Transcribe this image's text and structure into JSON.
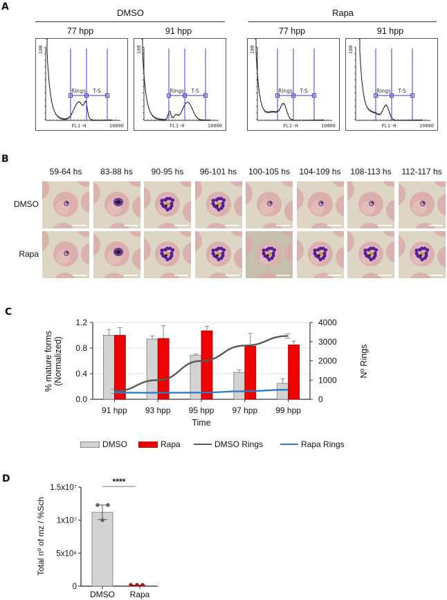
{
  "panel_a": {
    "letter": "A",
    "groups": [
      {
        "label": "DMSO",
        "plots": [
          {
            "title": "77 hpp",
            "profile": "dmso77"
          },
          {
            "title": "91 hpp",
            "profile": "dmso91"
          }
        ]
      },
      {
        "label": "Rapa",
        "plots": [
          {
            "title": "77 hpp",
            "profile": "rapa77"
          },
          {
            "title": "91 hpp",
            "profile": "rapa91"
          }
        ]
      }
    ],
    "y_tick_label": "100",
    "x_axis_label": "FL1-H",
    "x_max_label": "10000",
    "gate_labels": [
      "Rings",
      "T-S"
    ],
    "gate_color": "#3a3adf"
  },
  "panel_b": {
    "letter": "B",
    "time_labels": [
      "59-64 hs",
      "83-88 hs",
      "90-95 hs",
      "96-101 hs",
      "100-105 hs",
      "104-109 hs",
      "108-113 hs",
      "112-117 hs"
    ],
    "row_labels": [
      "DMSO",
      "Rapa"
    ],
    "stages": {
      "DMSO": [
        "ring",
        "trophozoite",
        "schizont",
        "schizont",
        "ring",
        "ring",
        "ring",
        "ring"
      ],
      "Rapa": [
        "ring",
        "trophozoite",
        "schizont",
        "schizont",
        "schizont",
        "schizont",
        "schizont",
        "schizont"
      ]
    }
  },
  "panel_c": {
    "letter": "C",
    "ylabel_line1": "% mature forms",
    "ylabel_line2": "(Normalized)",
    "y2label": "Nº Rings",
    "xlabel": "Time",
    "y_ticks": [
      "0.0",
      "0.4",
      "0.8",
      "1.2"
    ],
    "y2_ticks": [
      "0",
      "1000",
      "2000",
      "3000",
      "4000"
    ],
    "legend": [
      {
        "label": "DMSO",
        "kind": "bar",
        "color": "#d3d3d3"
      },
      {
        "label": "Rapa",
        "kind": "bar",
        "color": "#ee0000"
      },
      {
        "label": "DMSO Rings",
        "kind": "line",
        "color": "#595959"
      },
      {
        "label": "Rapa Rings",
        "kind": "line",
        "color": "#2e7cc4"
      }
    ]
  },
  "panel_d": {
    "letter": "D",
    "ylabel": "Total nº of mz / %Sch",
    "y_ticks": [
      "0",
      "5x10⁶",
      "1x10⁷",
      "1.5x10⁷"
    ],
    "categories": [
      "DMSO",
      "Rapa"
    ],
    "significance": "****"
  },
  "chart_data": [
    {
      "type": "bar",
      "title": "Panel C: mature forms and ring counts over time",
      "categories": [
        "91 hpp",
        "93 hpp",
        "95 hpp",
        "97 hpp",
        "99 hpp"
      ],
      "xlabel": "Time",
      "ylabel": "% mature forms (Normalized)",
      "y2label": "Nº Rings",
      "ylim": [
        0,
        1.2
      ],
      "y2lim": [
        0,
        4000
      ],
      "grid": true,
      "legend_position": "bottom",
      "series": [
        {
          "name": "DMSO",
          "type": "bar",
          "axis": "left",
          "color": "#d3d3d3",
          "values": [
            1.0,
            0.94,
            0.69,
            0.42,
            0.25
          ],
          "errors": [
            0.09,
            0.05,
            0.02,
            0.04,
            0.07
          ]
        },
        {
          "name": "Rapa",
          "type": "bar",
          "axis": "left",
          "color": "#ee0000",
          "values": [
            1.0,
            0.95,
            1.07,
            0.83,
            0.85
          ],
          "errors": [
            0.12,
            0.2,
            0.07,
            0.2,
            0.06
          ]
        },
        {
          "name": "DMSO Rings",
          "type": "line",
          "axis": "right",
          "color": "#595959",
          "values": [
            420,
            1000,
            2000,
            2800,
            3300
          ]
        },
        {
          "name": "Rapa Rings",
          "type": "line",
          "axis": "right",
          "color": "#2e7cc4",
          "values": [
            350,
            340,
            350,
            420,
            500
          ]
        }
      ]
    },
    {
      "type": "bar",
      "title": "Panel D: total merozoites per % schizonts",
      "categories": [
        "DMSO",
        "Rapa"
      ],
      "ylabel": "Total nº of mz / %Sch",
      "ylim": [
        0,
        15000000
      ],
      "values": [
        11200000,
        120000
      ],
      "errors": [
        1100000,
        30000
      ],
      "points": {
        "DMSO": [
          12300000,
          12300000,
          10000000
        ],
        "Rapa": [
          120000,
          120000,
          120000
        ]
      },
      "colors": {
        "DMSO": "#d3d3d3",
        "Rapa": "#aa1111"
      },
      "annotation": "****"
    }
  ]
}
